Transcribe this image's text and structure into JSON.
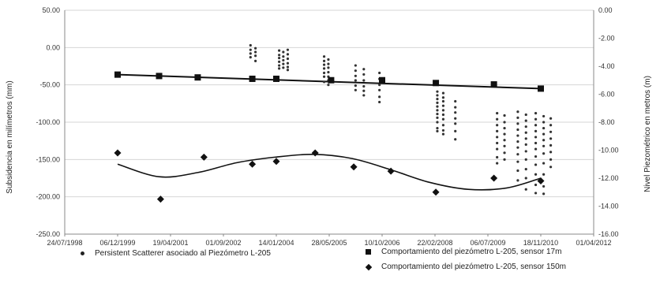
{
  "chart_data": {
    "type": "scatter",
    "x_ticks": [
      "24/07/1998",
      "06/12/1999",
      "19/04/2001",
      "01/09/2002",
      "14/01/2004",
      "28/05/2005",
      "10/10/2006",
      "22/02/2008",
      "06/07/2009",
      "18/11/2010",
      "01/04/2012"
    ],
    "y_left_ticks": [
      "50.00",
      "0.00",
      "-50.00",
      "-100.00",
      "-150.00",
      "-200.00",
      "-250.00"
    ],
    "y_right_ticks": [
      "0.00",
      "-2.00",
      "-4.00",
      "-6.00",
      "-8.00",
      "-10.00",
      "-12.00",
      "-14.00",
      "-16.00"
    ],
    "ylabel_left": "Subsidencia en milímetros   (mm)",
    "ylabel_right": "Nivel Piezométrico en metros (m)",
    "ylim_left": [
      -250,
      50
    ],
    "ylim_right": [
      -16,
      0
    ],
    "legend": "bottom",
    "series": [
      {
        "name": "Persistent Scatterer  asociado  al Piezómetro L-205",
        "marker": "dot",
        "axis": "left",
        "points": [
          [
            "2003-05-15",
            3
          ],
          [
            "2003-05-15",
            -3
          ],
          [
            "2003-05-15",
            -8
          ],
          [
            "2003-05-15",
            -13
          ],
          [
            "2003-07-01",
            -1
          ],
          [
            "2003-07-01",
            -6
          ],
          [
            "2003-07-01",
            -11
          ],
          [
            "2003-07-01",
            -18
          ],
          [
            "2004-02-10",
            -4
          ],
          [
            "2004-02-10",
            -10
          ],
          [
            "2004-02-10",
            -14
          ],
          [
            "2004-02-10",
            -19
          ],
          [
            "2004-02-10",
            -24
          ],
          [
            "2004-02-10",
            -28
          ],
          [
            "2004-03-20",
            -6
          ],
          [
            "2004-03-20",
            -12
          ],
          [
            "2004-03-20",
            -17
          ],
          [
            "2004-03-20",
            -22
          ],
          [
            "2004-03-20",
            -27
          ],
          [
            "2004-05-01",
            -3
          ],
          [
            "2004-05-01",
            -9
          ],
          [
            "2004-05-01",
            -15
          ],
          [
            "2004-05-01",
            -21
          ],
          [
            "2004-05-01",
            -26
          ],
          [
            "2004-05-01",
            -30
          ],
          [
            "2005-04-10",
            -12
          ],
          [
            "2005-04-10",
            -18
          ],
          [
            "2005-04-10",
            -23
          ],
          [
            "2005-04-10",
            -28
          ],
          [
            "2005-04-10",
            -34
          ],
          [
            "2005-04-10",
            -39
          ],
          [
            "2005-04-10",
            -46
          ],
          [
            "2005-05-20",
            -16
          ],
          [
            "2005-05-20",
            -22
          ],
          [
            "2005-05-20",
            -27
          ],
          [
            "2005-05-20",
            -33
          ],
          [
            "2005-05-20",
            -39
          ],
          [
            "2005-05-20",
            -44
          ],
          [
            "2005-05-20",
            -50
          ],
          [
            "2006-02-01",
            -24
          ],
          [
            "2006-02-01",
            -31
          ],
          [
            "2006-02-01",
            -38
          ],
          [
            "2006-02-01",
            -44
          ],
          [
            "2006-02-01",
            -51
          ],
          [
            "2006-02-01",
            -57
          ],
          [
            "2006-04-20",
            -29
          ],
          [
            "2006-04-20",
            -36
          ],
          [
            "2006-04-20",
            -44
          ],
          [
            "2006-04-20",
            -52
          ],
          [
            "2006-04-20",
            -58
          ],
          [
            "2006-04-20",
            -64
          ],
          [
            "2006-09-15",
            -34
          ],
          [
            "2006-09-15",
            -42
          ],
          [
            "2006-09-15",
            -50
          ],
          [
            "2006-09-15",
            -57
          ],
          [
            "2006-09-15",
            -66
          ],
          [
            "2006-09-15",
            -73
          ],
          [
            "2008-03-15",
            -59
          ],
          [
            "2008-03-15",
            -64
          ],
          [
            "2008-03-15",
            -69
          ],
          [
            "2008-03-15",
            -74
          ],
          [
            "2008-03-15",
            -79
          ],
          [
            "2008-03-15",
            -84
          ],
          [
            "2008-03-15",
            -89
          ],
          [
            "2008-03-15",
            -94
          ],
          [
            "2008-03-15",
            -100
          ],
          [
            "2008-03-15",
            -108
          ],
          [
            "2008-03-15",
            -112
          ],
          [
            "2008-05-10",
            -61
          ],
          [
            "2008-05-10",
            -67
          ],
          [
            "2008-05-10",
            -72
          ],
          [
            "2008-05-10",
            -78
          ],
          [
            "2008-05-10",
            -84
          ],
          [
            "2008-05-10",
            -90
          ],
          [
            "2008-05-10",
            -96
          ],
          [
            "2008-05-10",
            -104
          ],
          [
            "2008-05-10",
            -111
          ],
          [
            "2008-05-10",
            -116
          ],
          [
            "2008-09-01",
            -72
          ],
          [
            "2008-09-01",
            -80
          ],
          [
            "2008-09-01",
            -87
          ],
          [
            "2008-09-01",
            -95
          ],
          [
            "2008-09-01",
            -102
          ],
          [
            "2008-09-01",
            -112
          ],
          [
            "2008-09-01",
            -123
          ],
          [
            "2009-10-01",
            -88
          ],
          [
            "2009-10-01",
            -96
          ],
          [
            "2009-10-01",
            -104
          ],
          [
            "2009-10-01",
            -112
          ],
          [
            "2009-10-01",
            -120
          ],
          [
            "2009-10-01",
            -128
          ],
          [
            "2009-10-01",
            -136
          ],
          [
            "2009-10-01",
            -147
          ],
          [
            "2009-10-01",
            -155
          ],
          [
            "2009-12-10",
            -91
          ],
          [
            "2009-12-10",
            -100
          ],
          [
            "2009-12-10",
            -108
          ],
          [
            "2009-12-10",
            -116
          ],
          [
            "2009-12-10",
            -124
          ],
          [
            "2009-12-10",
            -132
          ],
          [
            "2009-12-10",
            -141
          ],
          [
            "2009-12-10",
            -150
          ],
          [
            "2010-04-15",
            -86
          ],
          [
            "2010-04-15",
            -94
          ],
          [
            "2010-04-15",
            -102
          ],
          [
            "2010-04-15",
            -110
          ],
          [
            "2010-04-15",
            -118
          ],
          [
            "2010-04-15",
            -126
          ],
          [
            "2010-04-15",
            -134
          ],
          [
            "2010-04-15",
            -143
          ],
          [
            "2010-04-15",
            -153
          ],
          [
            "2010-04-15",
            -165
          ],
          [
            "2010-04-15",
            -178
          ],
          [
            "2010-07-01",
            -90
          ],
          [
            "2010-07-01",
            -98
          ],
          [
            "2010-07-01",
            -106
          ],
          [
            "2010-07-01",
            -114
          ],
          [
            "2010-07-01",
            -122
          ],
          [
            "2010-07-01",
            -130
          ],
          [
            "2010-07-01",
            -139
          ],
          [
            "2010-07-01",
            -150
          ],
          [
            "2010-07-01",
            -163
          ],
          [
            "2010-07-01",
            -175
          ],
          [
            "2010-07-01",
            -190
          ],
          [
            "2010-10-01",
            -88
          ],
          [
            "2010-10-01",
            -96
          ],
          [
            "2010-10-01",
            -104
          ],
          [
            "2010-10-01",
            -112
          ],
          [
            "2010-10-01",
            -120
          ],
          [
            "2010-10-01",
            -128
          ],
          [
            "2010-10-01",
            -136
          ],
          [
            "2010-10-01",
            -146
          ],
          [
            "2010-10-01",
            -157
          ],
          [
            "2010-10-01",
            -170
          ],
          [
            "2010-10-01",
            -184
          ],
          [
            "2010-10-01",
            -195
          ],
          [
            "2010-12-15",
            -92
          ],
          [
            "2010-12-15",
            -100
          ],
          [
            "2010-12-15",
            -108
          ],
          [
            "2010-12-15",
            -116
          ],
          [
            "2010-12-15",
            -124
          ],
          [
            "2010-12-15",
            -132
          ],
          [
            "2010-12-15",
            -142
          ],
          [
            "2010-12-15",
            -155
          ],
          [
            "2010-12-15",
            -170
          ],
          [
            "2010-12-15",
            -186
          ],
          [
            "2010-12-15",
            -196
          ],
          [
            "2011-02-20",
            -95
          ],
          [
            "2011-02-20",
            -104
          ],
          [
            "2011-02-20",
            -113
          ],
          [
            "2011-02-20",
            -122
          ],
          [
            "2011-02-20",
            -131
          ],
          [
            "2011-02-20",
            -140
          ],
          [
            "2011-02-20",
            -150
          ],
          [
            "2011-02-20",
            -160
          ]
        ]
      },
      {
        "name": "Comportamiento del  piezómetro L-205, sensor 17m",
        "marker": "square",
        "axis": "right",
        "trend": "linear",
        "points": [
          [
            "1999-12-06",
            -4.6
          ],
          [
            "2001-01-01",
            -4.7
          ],
          [
            "2002-01-01",
            -4.8
          ],
          [
            "2003-06-01",
            -4.9
          ],
          [
            "2004-01-14",
            -4.9
          ],
          [
            "2005-06-15",
            -5.0
          ],
          [
            "2006-10-10",
            -5.0
          ],
          [
            "2008-03-01",
            -5.2
          ],
          [
            "2009-09-01",
            -5.3
          ],
          [
            "2010-11-18",
            -5.6
          ]
        ]
      },
      {
        "name": "Comportamiento del  piezómetro L-205, sensor 150m",
        "marker": "diamond",
        "axis": "right",
        "trend": "polynomial",
        "points": [
          [
            "1999-12-06",
            -10.2
          ],
          [
            "2001-01-15",
            -13.5
          ],
          [
            "2002-03-01",
            -10.5
          ],
          [
            "2003-06-01",
            -11.0
          ],
          [
            "2004-01-14",
            -10.8
          ],
          [
            "2005-01-15",
            -10.2
          ],
          [
            "2006-01-15",
            -11.2
          ],
          [
            "2007-01-01",
            -11.5
          ],
          [
            "2008-03-01",
            -13.0
          ],
          [
            "2009-09-01",
            -12.0
          ],
          [
            "2010-11-18",
            -12.2
          ]
        ],
        "trend_points": [
          [
            "1999-12-06",
            -11.0
          ],
          [
            "2001-01-01",
            -11.9
          ],
          [
            "2002-01-01",
            -11.6
          ],
          [
            "2003-01-01",
            -10.9
          ],
          [
            "2004-01-01",
            -10.5
          ],
          [
            "2005-01-01",
            -10.3
          ],
          [
            "2006-01-01",
            -10.6
          ],
          [
            "2007-01-01",
            -11.4
          ],
          [
            "2008-01-01",
            -12.3
          ],
          [
            "2009-01-01",
            -12.8
          ],
          [
            "2010-01-01",
            -12.7
          ],
          [
            "2010-11-18",
            -12.0
          ]
        ]
      }
    ]
  }
}
